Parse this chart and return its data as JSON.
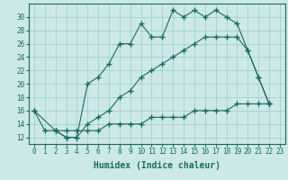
{
  "line1_x": [
    0,
    1,
    2,
    3,
    4,
    5,
    6,
    7,
    8,
    9,
    10,
    11,
    12,
    13,
    14,
    15,
    16,
    17,
    18,
    19,
    20,
    21,
    22
  ],
  "line1_y": [
    16,
    13,
    13,
    12,
    12,
    20,
    21,
    23,
    26,
    26,
    29,
    27,
    27,
    31,
    30,
    31,
    30,
    31,
    30,
    29,
    25,
    21,
    17
  ],
  "line2_x": [
    2,
    3,
    4,
    5,
    6,
    7,
    8,
    9,
    10,
    11,
    12,
    13,
    14,
    15,
    16,
    17,
    18,
    19,
    20,
    21,
    22
  ],
  "line2_y": [
    13,
    12,
    12,
    14,
    15,
    16,
    18,
    19,
    21,
    22,
    23,
    24,
    25,
    26,
    27,
    27,
    27,
    27,
    25,
    21,
    17
  ],
  "line3_x": [
    0,
    2,
    3,
    4,
    5,
    6,
    7,
    8,
    9,
    10,
    11,
    12,
    13,
    14,
    15,
    16,
    17,
    18,
    19,
    20,
    21,
    22
  ],
  "line3_y": [
    16,
    13,
    13,
    13,
    13,
    13,
    14,
    14,
    14,
    14,
    15,
    15,
    15,
    15,
    16,
    16,
    16,
    16,
    17,
    17,
    17,
    17
  ],
  "line_color": "#1a6b5e",
  "bg_color": "#cce8e8",
  "grid_color": "#99cccc",
  "xlabel": "Humidex (Indice chaleur)",
  "xlim": [
    -0.5,
    23.5
  ],
  "ylim": [
    11,
    32
  ],
  "yticks": [
    12,
    14,
    16,
    18,
    20,
    22,
    24,
    26,
    28,
    30
  ],
  "xticks": [
    0,
    1,
    2,
    3,
    4,
    5,
    6,
    7,
    8,
    9,
    10,
    11,
    12,
    13,
    14,
    15,
    16,
    17,
    18,
    19,
    20,
    21,
    22,
    23
  ],
  "xtick_labels": [
    "0",
    "1",
    "2",
    "3",
    "4",
    "5",
    "6",
    "7",
    "8",
    "9",
    "10",
    "11",
    "12",
    "13",
    "14",
    "15",
    "16",
    "17",
    "18",
    "19",
    "20",
    "21",
    "22",
    "23"
  ],
  "marker": "+",
  "markersize": 4.0,
  "linewidth": 0.8,
  "font_size": 5.5,
  "xlabel_fontsize": 7.0
}
